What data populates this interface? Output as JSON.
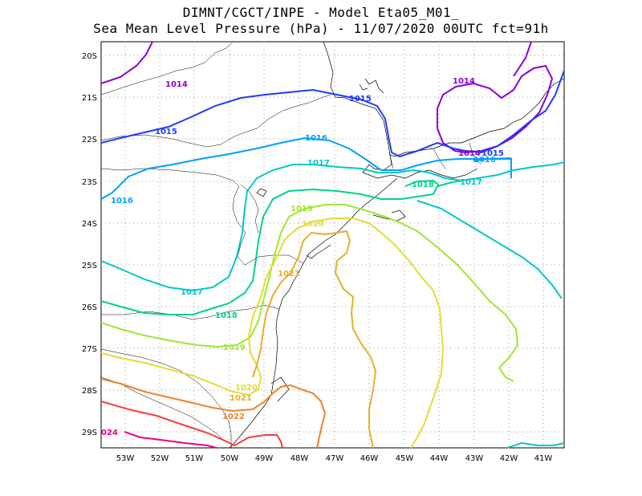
{
  "title_line1": "DIMNT/CGCT/INPE -  Model Eta05_M01_",
  "title_line2": "Sea Mean Level Pressure (hPa) - 11/07/2020 00UTC fct=91h",
  "lat_ticks": [
    "20S",
    "21S",
    "22S",
    "23S",
    "24S",
    "25S",
    "26S",
    "27S",
    "28S",
    "29S"
  ],
  "lon_ticks": [
    "53W",
    "52W",
    "51W",
    "50W",
    "49W",
    "48W",
    "47W",
    "46W",
    "45W",
    "44W",
    "43W",
    "42W",
    "41W"
  ],
  "contour_labels": [
    "1014",
    "1014",
    "1014",
    "1015",
    "1015",
    "1015",
    "1016",
    "1016",
    "1016",
    "1017",
    "1017",
    "1017",
    "1018",
    "1018",
    "1019",
    "1019",
    "1020",
    "1020",
    "1021",
    "1021",
    "1022",
    "024"
  ],
  "colors": {
    "c1014": "#8c00d2",
    "c1015": "#1e3cff",
    "c1016": "#00a0ff",
    "c1017": "#00c8c8",
    "c1018": "#00d28c",
    "c1019": "#a0e632",
    "c1020": "#e6dc32",
    "c1021": "#e6af2d",
    "c1022": "#f08228",
    "c1023": "#fa3c3c",
    "c1024": "#f00082"
  }
}
